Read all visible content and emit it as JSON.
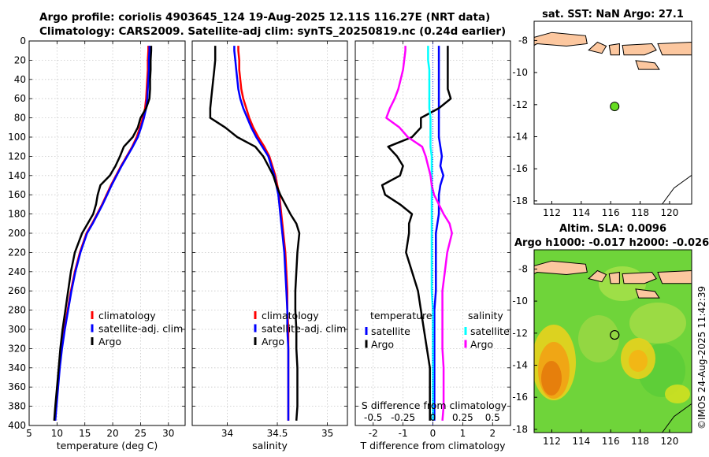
{
  "header": {
    "line1": "Argo profile: coriolis 4903645_124 19-Aug-2025 12.11S 116.27E (NRT data)",
    "line2": "Climatology: CARS2009. Satellite-adj clim: synTS_20250819.nc (0.24d earlier)"
  },
  "map_sst": {
    "title": "sat. SST: NaN Argo: 27.1",
    "x_ticks": [
      "112",
      "114",
      "116",
      "118",
      "120"
    ],
    "y_ticks": [
      "-8",
      "-10",
      "-12",
      "-14",
      "-16",
      "-18"
    ],
    "float_lon": 116.27,
    "float_lat": -12.11
  },
  "map_sla": {
    "title1": "Altim. SLA: 0.0096",
    "title2": "Argo h1000: -0.017 h2000: -0.026",
    "x_ticks": [
      "112",
      "114",
      "116",
      "118",
      "120"
    ],
    "y_ticks": [
      "-8",
      "-10",
      "-12",
      "-14",
      "-16",
      "-18"
    ]
  },
  "credit": "©IMOS 24-Aug-2025 11:42:39",
  "colors": {
    "climatology": "#ff0000",
    "satellite": "#0000ff",
    "argo": "#000000",
    "s_sat": "#00ffff",
    "s_argo": "#ff00ff",
    "land": "#fcc79f",
    "float": "#66dd22"
  },
  "chart_data": [
    {
      "type": "line",
      "name": "temperature",
      "xlabel": "temperature (deg C)",
      "x_ticks": [
        "5",
        "10",
        "15",
        "20",
        "25",
        "30"
      ],
      "xlim": [
        5,
        33
      ],
      "y_ticks": [
        "0",
        "20",
        "40",
        "60",
        "80",
        "100",
        "120",
        "140",
        "160",
        "180",
        "200",
        "220",
        "240",
        "260",
        "280",
        "300",
        "320",
        "340",
        "360",
        "380",
        "400"
      ],
      "ylim": [
        400,
        0
      ],
      "depth": [
        5,
        10,
        20,
        30,
        40,
        50,
        60,
        70,
        80,
        90,
        100,
        110,
        120,
        130,
        140,
        150,
        160,
        170,
        180,
        190,
        200,
        220,
        240,
        260,
        280,
        300,
        320,
        340,
        360,
        380,
        395
      ],
      "legend": [
        "climatology",
        "satellite-adj. clim",
        "Argo"
      ],
      "series": [
        {
          "name": "climatology",
          "color": "#ff0000",
          "values": [
            26.4,
            26.4,
            26.3,
            26.3,
            26.2,
            26.1,
            26.0,
            25.8,
            25.4,
            24.9,
            24.3,
            23.5,
            22.5,
            21.5,
            20.6,
            19.7,
            18.9,
            18.1,
            17.2,
            16.3,
            15.3,
            14.1,
            13.2,
            12.5,
            11.9,
            11.3,
            10.8,
            10.4,
            10.1,
            9.8,
            9.6
          ]
        },
        {
          "name": "satellite-adj. clim",
          "color": "#0000ff",
          "values": [
            26.6,
            26.6,
            26.5,
            26.5,
            26.4,
            26.3,
            26.2,
            26.0,
            25.6,
            25.1,
            24.5,
            23.6,
            22.6,
            21.6,
            20.7,
            19.8,
            19.0,
            18.2,
            17.3,
            16.4,
            15.4,
            14.2,
            13.3,
            12.6,
            12.0,
            11.4,
            10.9,
            10.5,
            10.2,
            9.9,
            9.7
          ]
        },
        {
          "name": "Argo",
          "color": "#000000",
          "values": [
            26.9,
            26.9,
            26.8,
            26.8,
            26.7,
            26.7,
            26.6,
            26.0,
            25.0,
            24.5,
            23.6,
            22.0,
            21.3,
            20.5,
            19.5,
            17.8,
            17.3,
            17.0,
            16.5,
            15.5,
            14.5,
            13.2,
            12.5,
            12.0,
            11.5,
            11.0,
            10.6,
            10.3,
            10.0,
            9.7,
            9.5
          ]
        }
      ]
    },
    {
      "type": "line",
      "name": "salinity",
      "xlabel": "salinity",
      "x_ticks": [
        "34",
        "34.5",
        "35"
      ],
      "xlim": [
        33.65,
        35.2
      ],
      "y_ticks": [
        "0",
        "20",
        "40",
        "60",
        "80",
        "100",
        "120",
        "140",
        "160",
        "180",
        "200",
        "220",
        "240",
        "260",
        "280",
        "300",
        "320",
        "340",
        "360",
        "380",
        "400"
      ],
      "ylim": [
        400,
        0
      ],
      "depth": [
        5,
        10,
        20,
        30,
        40,
        50,
        60,
        70,
        80,
        90,
        100,
        110,
        120,
        130,
        140,
        150,
        160,
        170,
        180,
        190,
        200,
        220,
        240,
        260,
        280,
        300,
        320,
        340,
        360,
        380,
        395
      ],
      "legend": [
        "climatology",
        "satellite-adj. clim",
        "Argo"
      ],
      "series": [
        {
          "name": "climatology",
          "color": "#ff0000",
          "values": [
            34.11,
            34.11,
            34.12,
            34.12,
            34.13,
            34.14,
            34.16,
            34.19,
            34.22,
            34.26,
            34.31,
            34.37,
            34.42,
            34.45,
            34.48,
            34.5,
            34.52,
            34.53,
            34.54,
            34.55,
            34.56,
            34.58,
            34.59,
            34.6,
            34.6,
            34.61,
            34.61,
            34.61,
            34.61,
            34.61,
            34.61
          ]
        },
        {
          "name": "satellite-adj. clim",
          "color": "#0000ff",
          "values": [
            34.07,
            34.07,
            34.08,
            34.09,
            34.1,
            34.11,
            34.13,
            34.16,
            34.2,
            34.24,
            34.29,
            34.35,
            34.41,
            34.44,
            34.47,
            34.49,
            34.51,
            34.52,
            34.53,
            34.54,
            34.55,
            34.57,
            34.58,
            34.59,
            34.6,
            34.6,
            34.61,
            34.61,
            34.61,
            34.61,
            34.61
          ]
        },
        {
          "name": "Argo",
          "color": "#000000",
          "values": [
            33.88,
            33.88,
            33.88,
            33.87,
            33.86,
            33.85,
            33.84,
            33.83,
            33.83,
            33.98,
            34.1,
            34.28,
            34.36,
            34.41,
            34.46,
            34.49,
            34.53,
            34.58,
            34.63,
            34.69,
            34.72,
            34.7,
            34.69,
            34.68,
            34.68,
            34.69,
            34.69,
            34.7,
            34.7,
            34.7,
            34.69
          ]
        }
      ]
    },
    {
      "type": "line",
      "name": "difference from climatology",
      "xlabel": "T difference from climatology",
      "x_ticks": [
        "-2",
        "-1",
        "0",
        "1",
        "2"
      ],
      "xlim": [
        -2.6,
        2.6
      ],
      "s_label": "S difference from climatology",
      "s_ticks": [
        "-0.5",
        "-0.25",
        "0",
        "0.25",
        "0.5"
      ],
      "y_ticks": [
        "0",
        "20",
        "40",
        "60",
        "80",
        "100",
        "120",
        "140",
        "160",
        "180",
        "200",
        "220",
        "240",
        "260",
        "280",
        "300",
        "320",
        "340",
        "360",
        "380",
        "400"
      ],
      "ylim": [
        400,
        0
      ],
      "depth": [
        5,
        10,
        20,
        30,
        40,
        50,
        60,
        70,
        80,
        90,
        100,
        110,
        120,
        130,
        140,
        150,
        160,
        170,
        180,
        190,
        200,
        220,
        240,
        260,
        280,
        300,
        320,
        340,
        360,
        380,
        395
      ],
      "legend_t": {
        "title": "temperature",
        "items": [
          "satellite",
          "Argo"
        ]
      },
      "legend_s": {
        "title": "salinity",
        "items": [
          "satellite",
          "Argo"
        ]
      },
      "series": [
        {
          "name": "temperature satellite",
          "color": "#0000ff",
          "values": [
            0.2,
            0.2,
            0.2,
            0.2,
            0.2,
            0.2,
            0.2,
            0.2,
            0.2,
            0.2,
            0.2,
            0.25,
            0.3,
            0.25,
            0.35,
            0.25,
            0.2,
            0.2,
            0.2,
            0.15,
            0.1,
            0.1,
            0.1,
            0.1,
            0.05,
            0.05,
            0.05,
            0.05,
            0.05,
            0.05,
            0.05
          ]
        },
        {
          "name": "temperature Argo",
          "color": "#000000",
          "values": [
            0.5,
            0.5,
            0.5,
            0.5,
            0.5,
            0.5,
            0.6,
            0.2,
            -0.4,
            -0.4,
            -0.7,
            -1.5,
            -1.2,
            -1.0,
            -1.1,
            -1.7,
            -1.6,
            -1.1,
            -0.7,
            -0.8,
            -0.8,
            -0.9,
            -0.7,
            -0.5,
            -0.4,
            -0.3,
            -0.2,
            -0.1,
            -0.1,
            -0.1,
            -0.1
          ]
        },
        {
          "name": "salinity satellite",
          "color": "#00ffff",
          "values": [
            -0.04,
            -0.04,
            -0.04,
            -0.03,
            -0.03,
            -0.03,
            -0.03,
            -0.03,
            -0.02,
            -0.02,
            -0.02,
            -0.02,
            -0.01,
            -0.01,
            -0.01,
            -0.01,
            -0.01,
            -0.01,
            -0.01,
            -0.01,
            -0.01,
            -0.01,
            -0.01,
            -0.01,
            0.0,
            0.0,
            0.0,
            0.0,
            0.0,
            0.0,
            0.0
          ]
        },
        {
          "name": "salinity Argo",
          "color": "#ff00ff",
          "values": [
            -0.23,
            -0.23,
            -0.24,
            -0.25,
            -0.27,
            -0.29,
            -0.32,
            -0.36,
            -0.39,
            -0.28,
            -0.21,
            -0.09,
            -0.06,
            -0.04,
            -0.02,
            -0.01,
            0.01,
            0.05,
            0.09,
            0.14,
            0.16,
            0.12,
            0.1,
            0.08,
            0.08,
            0.08,
            0.08,
            0.09,
            0.09,
            0.09,
            0.08
          ]
        }
      ]
    }
  ]
}
